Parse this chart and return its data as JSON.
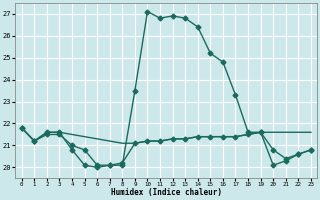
{
  "xlabel": "Humidex (Indice chaleur)",
  "xlim": [
    -0.5,
    23.5
  ],
  "ylim": [
    19.5,
    27.5
  ],
  "yticks": [
    20,
    21,
    22,
    23,
    24,
    25,
    26,
    27
  ],
  "xticks": [
    0,
    1,
    2,
    3,
    4,
    5,
    6,
    7,
    8,
    9,
    10,
    11,
    12,
    13,
    14,
    15,
    16,
    17,
    18,
    19,
    20,
    21,
    22,
    23
  ],
  "bg_color": "#cde8eb",
  "grid_color": "#ffffff",
  "line_color": "#1a6b5e",
  "line1_x": [
    0,
    1,
    2,
    3,
    4,
    5,
    6,
    7,
    8,
    9,
    10,
    11,
    12,
    13,
    14,
    15,
    16,
    17,
    18,
    19,
    20,
    21,
    22,
    23
  ],
  "line1_y": [
    21.8,
    21.2,
    21.6,
    21.6,
    20.8,
    20.1,
    20.0,
    20.1,
    20.1,
    23.5,
    27.1,
    26.8,
    26.9,
    26.8,
    26.4,
    25.2,
    24.8,
    23.3,
    21.6,
    21.6,
    20.1,
    20.3,
    20.6,
    20.8
  ],
  "line2_x": [
    0,
    1,
    2,
    3,
    4,
    5,
    6,
    7,
    8,
    9,
    10,
    11,
    12,
    13,
    14,
    15,
    16,
    17,
    18,
    19,
    20,
    21,
    22,
    23
  ],
  "line2_y": [
    21.8,
    21.2,
    21.6,
    21.6,
    21.5,
    21.4,
    21.3,
    21.2,
    21.1,
    21.1,
    21.2,
    21.2,
    21.3,
    21.3,
    21.4,
    21.4,
    21.4,
    21.4,
    21.5,
    21.6,
    21.6,
    21.6,
    21.6,
    21.6
  ],
  "line3_x": [
    0,
    1,
    2,
    3,
    4,
    5,
    6,
    7,
    8,
    9,
    10,
    11,
    12,
    13,
    14,
    15,
    16,
    17,
    18,
    19,
    20,
    21,
    22,
    23
  ],
  "line3_y": [
    21.8,
    21.2,
    21.5,
    21.5,
    21.0,
    20.8,
    20.1,
    20.1,
    20.2,
    21.1,
    21.2,
    21.2,
    21.3,
    21.3,
    21.4,
    21.4,
    21.4,
    21.4,
    21.5,
    21.6,
    20.8,
    20.4,
    20.6,
    20.8
  ],
  "marker_size": 2.5,
  "linewidth": 1.0
}
